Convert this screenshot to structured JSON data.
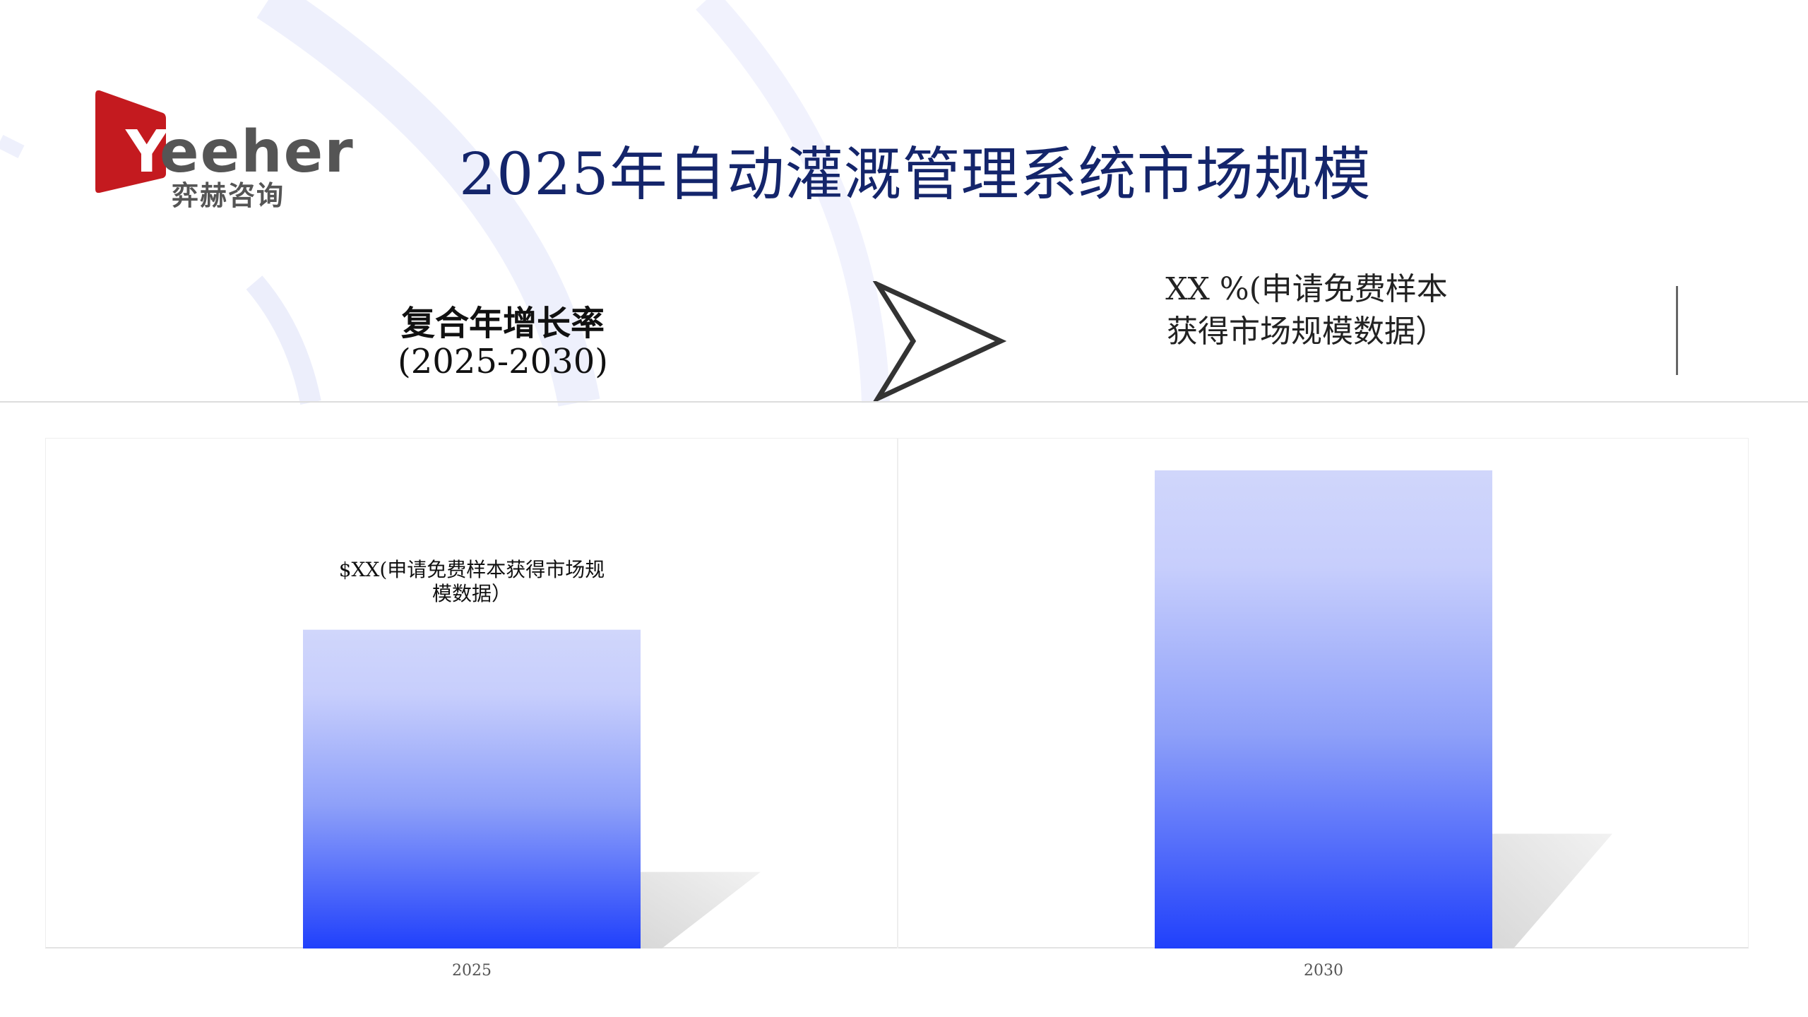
{
  "logo": {
    "brand": "Yeeher",
    "brand_first": "Y",
    "brand_rest": "eeher",
    "brand_cn": "弈赫咨询",
    "color": "#c41a1f"
  },
  "title": "2025年自动灌溉管理系统市场规模",
  "cagr": {
    "label": "复合年增长率",
    "period": "(2025-2030)",
    "value_line1": "XX %(申请免费样本",
    "value_line2": "获得市场规模数据）"
  },
  "icons": {
    "arrow": "chevron-right-arrow-icon"
  },
  "chart_data": {
    "type": "bar",
    "categories": [
      "2025",
      "2030"
    ],
    "values": [
      1.0,
      1.5
    ],
    "data_labels": [
      "$XX(申请免费样本获得市场规模数据）",
      ""
    ],
    "data_label_lines": [
      "$XX(申请免费样本获得市场规",
      "模数据）"
    ],
    "title": "",
    "xlabel": "",
    "ylabel": "",
    "grid": false,
    "bar_gradient": [
      "#d0d6fb",
      "#2040fb"
    ]
  }
}
